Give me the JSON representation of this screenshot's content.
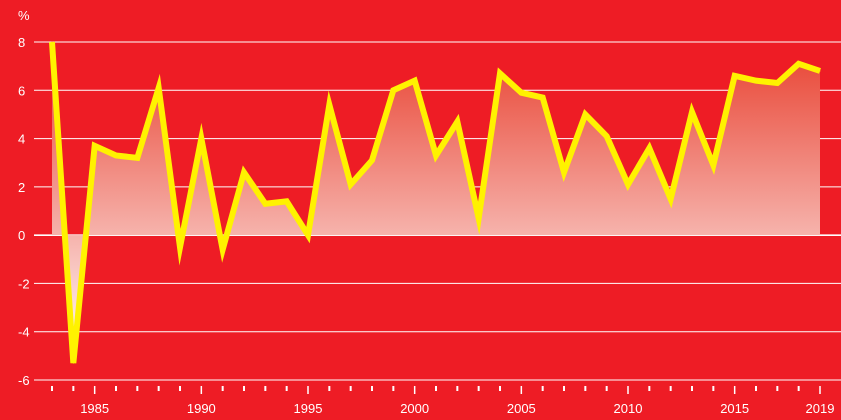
{
  "chart_data": {
    "type": "area",
    "title": "",
    "xlabel": "",
    "ylabel": "%",
    "ylim": [
      -6,
      8
    ],
    "yticks": [
      -6,
      -4,
      -2,
      0,
      2,
      4,
      6,
      8
    ],
    "xlim": [
      1983,
      2019
    ],
    "xtick_labels": [
      1985,
      1990,
      1995,
      2000,
      2005,
      2010,
      2015,
      2019
    ],
    "grid": true,
    "colors": {
      "background": "#ee1c25",
      "line": "#fff200",
      "grid": "#ffffff",
      "fill_top": "#e8402f",
      "fill_bottom": "#ffffff"
    },
    "series": [
      {
        "x": [
          1983,
          1984,
          1985,
          1986,
          1987,
          1988,
          1989,
          1990,
          1991,
          1992,
          1993,
          1994,
          1995,
          1996,
          1997,
          1998,
          1999,
          2000,
          2001,
          2002,
          2003,
          2004,
          2005,
          2006,
          2007,
          2008,
          2009,
          2010,
          2011,
          2012,
          2013,
          2014,
          2015,
          2016,
          2017,
          2018,
          2019
        ],
        "values": [
          8.0,
          -5.3,
          3.7,
          3.3,
          3.2,
          6.1,
          -0.5,
          4.0,
          -0.6,
          2.6,
          1.3,
          1.4,
          0.0,
          5.4,
          2.1,
          3.1,
          6.0,
          6.4,
          3.3,
          4.7,
          0.7,
          6.7,
          5.9,
          5.7,
          2.6,
          5.0,
          4.1,
          2.1,
          3.6,
          1.5,
          5.1,
          2.9,
          6.6,
          6.4,
          6.3,
          7.1,
          6.8
        ]
      }
    ]
  }
}
